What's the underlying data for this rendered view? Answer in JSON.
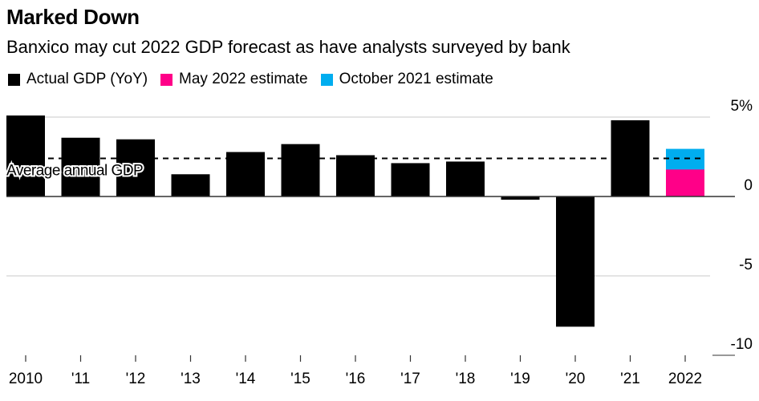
{
  "chart_data": {
    "type": "bar",
    "title": "Marked Down",
    "subtitle": "Banxico may cut 2022 GDP forecast as have analysts surveyed by bank",
    "xlabel": "",
    "ylabel": "",
    "ylim": [
      -10,
      5
    ],
    "y_ticks": [
      5,
      0,
      -5,
      -10
    ],
    "y_tick_labels": [
      "5%",
      "0",
      "-5",
      "-10"
    ],
    "grid": true,
    "legend_position": "top-left",
    "categories": [
      "2010",
      "'11",
      "'12",
      "'13",
      "'14",
      "'15",
      "'16",
      "'17",
      "'18",
      "'19",
      "'20",
      "'21",
      "2022"
    ],
    "series": [
      {
        "name": "Actual GDP (YoY)",
        "color": "#000000",
        "values": [
          5.1,
          3.7,
          3.6,
          1.4,
          2.8,
          3.3,
          2.6,
          2.1,
          2.2,
          -0.2,
          -8.2,
          4.8,
          null
        ]
      },
      {
        "name": "May 2022 estimate",
        "color": "#ff0088",
        "values": [
          null,
          null,
          null,
          null,
          null,
          null,
          null,
          null,
          null,
          null,
          null,
          null,
          1.7
        ]
      },
      {
        "name": "October 2021 estimate",
        "color": "#00adef",
        "values": [
          null,
          null,
          null,
          null,
          null,
          null,
          null,
          null,
          null,
          null,
          null,
          null,
          3.0
        ]
      }
    ],
    "annotations": [
      {
        "type": "reference-line",
        "label": "Average annual GDP",
        "value": 2.4,
        "style": "dashed"
      }
    ]
  }
}
